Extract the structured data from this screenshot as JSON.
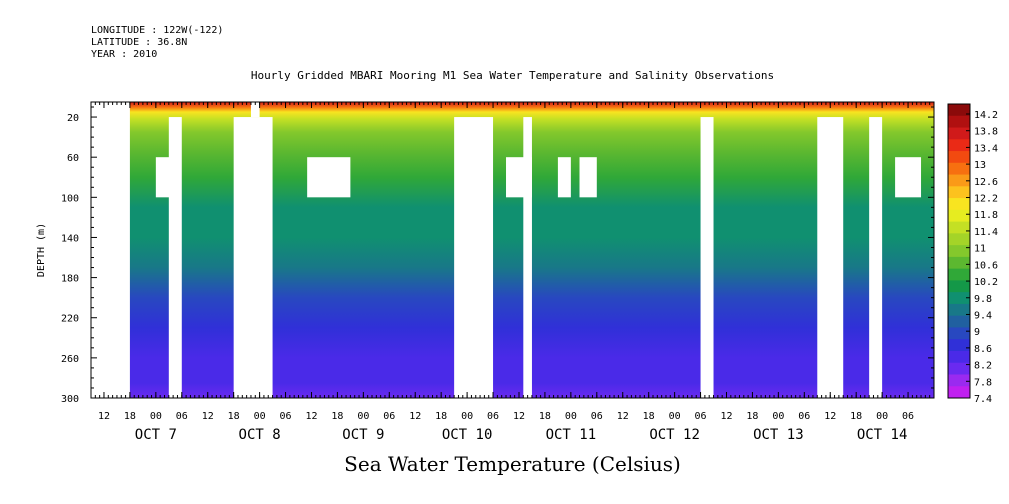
{
  "header": {
    "longitude": "LONGITUDE : 122W(-122)",
    "latitude": "LATITUDE : 36.8N",
    "year": "YEAR : 2010"
  },
  "chart_data": {
    "type": "heatmap",
    "title": "Hourly Gridded MBARI Mooring M1 Sea Water Temperature and Salinity Observations",
    "subtitle": "Sea Water Temperature (Celsius)",
    "ylabel": "DEPTH (m)",
    "ylim": [
      300,
      5
    ],
    "y_ticks": [
      20,
      60,
      100,
      140,
      180,
      220,
      260,
      300
    ],
    "x_start": "2010-10-06 09:00",
    "x_end": "2010-10-14 12:00",
    "x_hour_ticks": [
      {
        "label": "12",
        "time": "2010-10-06 12:00"
      },
      {
        "label": "18",
        "time": "2010-10-06 18:00"
      },
      {
        "label": "00",
        "time": "2010-10-07 00:00"
      },
      {
        "label": "06",
        "time": "2010-10-07 06:00"
      },
      {
        "label": "12",
        "time": "2010-10-07 12:00"
      },
      {
        "label": "18",
        "time": "2010-10-07 18:00"
      },
      {
        "label": "00",
        "time": "2010-10-08 00:00"
      },
      {
        "label": "06",
        "time": "2010-10-08 06:00"
      },
      {
        "label": "12",
        "time": "2010-10-08 12:00"
      },
      {
        "label": "18",
        "time": "2010-10-08 18:00"
      },
      {
        "label": "00",
        "time": "2010-10-09 00:00"
      },
      {
        "label": "06",
        "time": "2010-10-09 06:00"
      },
      {
        "label": "12",
        "time": "2010-10-09 12:00"
      },
      {
        "label": "18",
        "time": "2010-10-09 18:00"
      },
      {
        "label": "00",
        "time": "2010-10-10 00:00"
      },
      {
        "label": "06",
        "time": "2010-10-10 06:00"
      },
      {
        "label": "12",
        "time": "2010-10-10 12:00"
      },
      {
        "label": "18",
        "time": "2010-10-10 18:00"
      },
      {
        "label": "00",
        "time": "2010-10-11 00:00"
      },
      {
        "label": "06",
        "time": "2010-10-11 06:00"
      },
      {
        "label": "12",
        "time": "2010-10-11 12:00"
      },
      {
        "label": "18",
        "time": "2010-10-11 18:00"
      },
      {
        "label": "00",
        "time": "2010-10-12 00:00"
      },
      {
        "label": "06",
        "time": "2010-10-12 06:00"
      },
      {
        "label": "12",
        "time": "2010-10-12 12:00"
      },
      {
        "label": "18",
        "time": "2010-10-12 18:00"
      },
      {
        "label": "00",
        "time": "2010-10-13 00:00"
      },
      {
        "label": "06",
        "time": "2010-10-13 06:00"
      },
      {
        "label": "12",
        "time": "2010-10-13 12:00"
      },
      {
        "label": "18",
        "time": "2010-10-13 18:00"
      },
      {
        "label": "00",
        "time": "2010-10-14 00:00"
      },
      {
        "label": "06",
        "time": "2010-10-14 06:00"
      }
    ],
    "x_date_labels": [
      {
        "label": "OCT  7",
        "time": "2010-10-07 00:00"
      },
      {
        "label": "OCT  8",
        "time": "2010-10-08 00:00"
      },
      {
        "label": "OCT  9",
        "time": "2010-10-09 00:00"
      },
      {
        "label": "OCT 10",
        "time": "2010-10-10 00:00"
      },
      {
        "label": "OCT 11",
        "time": "2010-10-11 00:00"
      },
      {
        "label": "OCT 12",
        "time": "2010-10-12 00:00"
      },
      {
        "label": "OCT 13",
        "time": "2010-10-13 00:00"
      },
      {
        "label": "OCT 14",
        "time": "2010-10-14 00:00"
      }
    ],
    "temperature_profile": [
      {
        "depth": 5,
        "value": 13.9
      },
      {
        "depth": 10,
        "value": 13.0
      },
      {
        "depth": 15,
        "value": 12.2
      },
      {
        "depth": 22,
        "value": 11.4
      },
      {
        "depth": 35,
        "value": 10.9
      },
      {
        "depth": 55,
        "value": 10.5
      },
      {
        "depth": 80,
        "value": 10.2
      },
      {
        "depth": 110,
        "value": 9.8
      },
      {
        "depth": 140,
        "value": 9.6
      },
      {
        "depth": 170,
        "value": 9.3
      },
      {
        "depth": 200,
        "value": 9.0
      },
      {
        "depth": 230,
        "value": 8.7
      },
      {
        "depth": 260,
        "value": 8.4
      },
      {
        "depth": 285,
        "value": 8.2
      },
      {
        "depth": 300,
        "value": 8.0
      }
    ],
    "no_data_gaps": [
      {
        "start": "2010-10-06 09:00",
        "end": "2010-10-06 18:00",
        "depth_top": 5,
        "depth_bottom": 300
      },
      {
        "start": "2010-10-07 03:00",
        "end": "2010-10-07 06:00",
        "depth_top": 20,
        "depth_bottom": 300
      },
      {
        "start": "2010-10-07 18:00",
        "end": "2010-10-08 03:00",
        "depth_top": 20,
        "depth_bottom": 300
      },
      {
        "start": "2010-10-07 22:00",
        "end": "2010-10-08 00:00",
        "depth_top": 5,
        "depth_bottom": 20
      },
      {
        "start": "2010-10-09 21:00",
        "end": "2010-10-10 06:00",
        "depth_top": 20,
        "depth_bottom": 300
      },
      {
        "start": "2010-10-10 13:00",
        "end": "2010-10-10 15:00",
        "depth_top": 20,
        "depth_bottom": 300
      },
      {
        "start": "2010-10-12 06:00",
        "end": "2010-10-12 09:00",
        "depth_top": 20,
        "depth_bottom": 300
      },
      {
        "start": "2010-10-13 09:00",
        "end": "2010-10-13 15:00",
        "depth_top": 20,
        "depth_bottom": 300
      },
      {
        "start": "2010-10-13 21:00",
        "end": "2010-10-14 00:00",
        "depth_top": 20,
        "depth_bottom": 300
      },
      {
        "start": "2010-10-06 11:00",
        "end": "2010-10-06 14:00",
        "depth_top": 60,
        "depth_bottom": 100
      },
      {
        "start": "2010-10-07 00:00",
        "end": "2010-10-07 05:00",
        "depth_top": 60,
        "depth_bottom": 100
      },
      {
        "start": "2010-10-08 01:00",
        "end": "2010-10-08 02:00",
        "depth_top": 60,
        "depth_bottom": 100
      },
      {
        "start": "2010-10-08 11:00",
        "end": "2010-10-08 21:00",
        "depth_top": 60,
        "depth_bottom": 100
      },
      {
        "start": "2010-10-10 09:00",
        "end": "2010-10-10 15:00",
        "depth_top": 60,
        "depth_bottom": 100
      },
      {
        "start": "2010-10-10 21:00",
        "end": "2010-10-11 00:00",
        "depth_top": 60,
        "depth_bottom": 100
      },
      {
        "start": "2010-10-11 02:00",
        "end": "2010-10-11 06:00",
        "depth_top": 60,
        "depth_bottom": 100
      },
      {
        "start": "2010-10-14 03:00",
        "end": "2010-10-14 09:00",
        "depth_top": 60,
        "depth_bottom": 100
      }
    ],
    "colorbar": {
      "labels": [
        "14.2",
        "13.8",
        "13.4",
        "13",
        "12.6",
        "12.2",
        "11.8",
        "11.4",
        "11",
        "10.6",
        "10.2",
        "9.8",
        "9.4",
        "9",
        "8.6",
        "8.2",
        "7.8",
        "7.4"
      ],
      "colors": [
        "#8b0a0a",
        "#b01010",
        "#d01a1a",
        "#ea2a16",
        "#f24a10",
        "#f77010",
        "#fa9a18",
        "#fcc21e",
        "#f8e420",
        "#e6ec20",
        "#c4e024",
        "#a4d428",
        "#84c82c",
        "#5cb830",
        "#30a838",
        "#149848",
        "#109070",
        "#187888",
        "#2060a0",
        "#2848c0",
        "#3030d8",
        "#4a2ae8",
        "#6a2af0",
        "#9a2af0",
        "#c020f0"
      ]
    }
  }
}
